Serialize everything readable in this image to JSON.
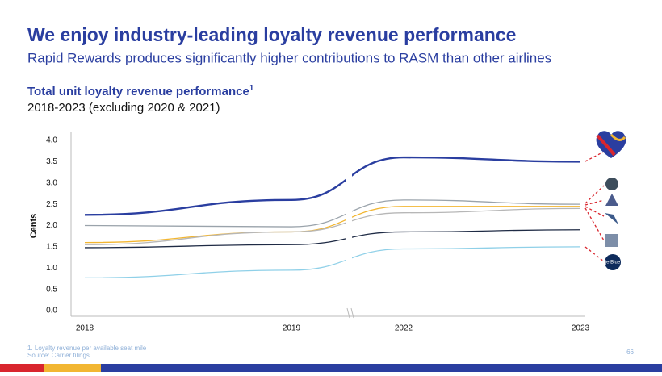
{
  "header": {
    "title": "We enjoy industry-leading loyalty revenue performance",
    "subtitle": "Rapid Rewards produces significantly higher contributions to RASM than other airlines"
  },
  "chart_data": {
    "type": "line",
    "title": "Total unit loyalty revenue performance",
    "title_note": "1",
    "subtitle": "2018-2023 (excluding 2020 & 2021)",
    "y_label": "Cents",
    "categories": [
      "2018",
      "2019",
      "2022",
      "2023"
    ],
    "ylim": [
      0,
      4
    ],
    "yticks": [
      {
        "value": 0,
        "label": "0.0"
      },
      0.5,
      {
        "value": 1,
        "label": "1.0"
      },
      1.5,
      {
        "value": 2,
        "label": "2.0"
      },
      2.5,
      {
        "value": 3,
        "label": "3.0"
      },
      3.5,
      {
        "value": 4,
        "label": "4.0"
      }
    ],
    "series": [
      {
        "color": "#2a3ea0",
        "values": [
          2.25,
          2.6,
          3.6,
          3.5
        ]
      },
      {
        "color": "#9aa3ab",
        "values": [
          2.0,
          1.97,
          2.6,
          2.5
        ]
      },
      {
        "color": "#f2b632",
        "values": [
          1.6,
          1.85,
          2.45,
          2.45
        ]
      },
      {
        "color": "#b7b7b7",
        "values": [
          1.55,
          1.85,
          2.3,
          2.4
        ]
      },
      {
        "color": "#1f2b45",
        "values": [
          1.48,
          1.55,
          1.85,
          1.9
        ]
      },
      {
        "color": "#8fd0e8",
        "values": [
          0.77,
          0.95,
          1.45,
          1.5
        ]
      }
    ]
  },
  "footnote": "1. Loyalty revenue per available seat mile",
  "source": "Source: Carrier filings",
  "page_number": "66",
  "logos": [
    "jetBlue"
  ]
}
